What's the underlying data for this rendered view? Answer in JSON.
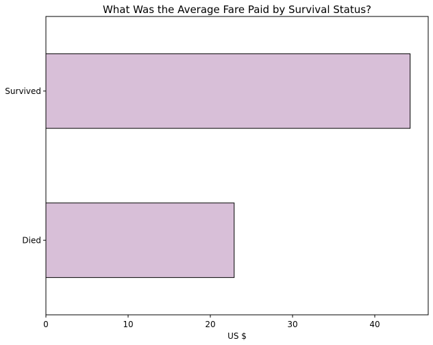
{
  "chart_data": {
    "type": "bar",
    "orientation": "horizontal",
    "title": "What Was the Average Fare Paid by Survival Status?",
    "xlabel": "US $",
    "ylabel": "",
    "categories": [
      "Died",
      "Survived"
    ],
    "values": [
      22.9,
      44.3
    ],
    "xlim": [
      0,
      46.5
    ],
    "xticks": [
      0,
      10,
      20,
      30,
      40
    ],
    "grid": false,
    "legend": "none",
    "colors": {
      "bar_fill": "#d8bfd8",
      "bar_edge": "#000000",
      "axes": "#000000",
      "background": "#ffffff"
    }
  }
}
